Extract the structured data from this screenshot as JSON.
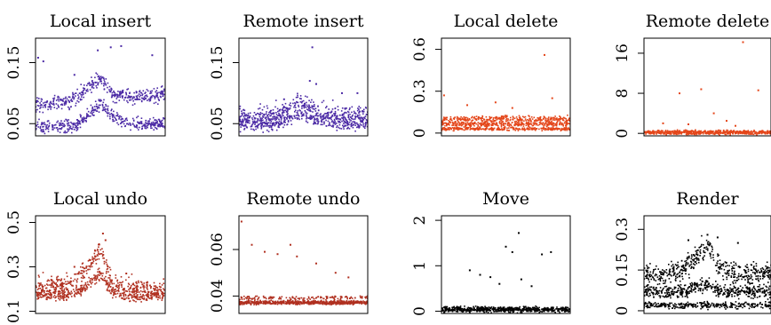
{
  "chart_data": [
    {
      "type": "scatter",
      "title": "Local insert",
      "xlabel": "",
      "ylabel": "",
      "ylim": [
        0.03,
        0.19
      ],
      "yticks": [
        0.05,
        0.15
      ],
      "ytick_labels": [
        "0.05",
        "0.15"
      ],
      "color": "#4b2aa5",
      "bands": [
        {
          "name": "",
          "y": [
            0.082,
            0.082,
            0.085,
            0.088,
            0.108,
            0.124,
            0.098,
            0.095,
            0.096,
            0.097,
            0.098
          ],
          "spread": 0.006,
          "n": 420
        },
        {
          "name": "",
          "y": [
            0.045,
            0.044,
            0.044,
            0.046,
            0.062,
            0.083,
            0.06,
            0.052,
            0.05,
            0.05,
            0.05
          ],
          "spread": 0.005,
          "n": 420
        }
      ],
      "outliers": [
        [
          0.02,
          0.158
        ],
        [
          0.06,
          0.152
        ],
        [
          0.58,
          0.175
        ],
        [
          0.66,
          0.177
        ],
        [
          0.48,
          0.17
        ],
        [
          0.9,
          0.162
        ],
        [
          0.3,
          0.13
        ]
      ]
    },
    {
      "type": "scatter",
      "title": "Remote insert",
      "xlabel": "",
      "ylabel": "",
      "ylim": [
        0.03,
        0.19
      ],
      "yticks": [
        0.05,
        0.15
      ],
      "ytick_labels": [
        "0.05",
        "0.15"
      ],
      "color": "#4b2aa5",
      "bands": [
        {
          "name": "",
          "y": [
            0.058,
            0.058,
            0.06,
            0.062,
            0.075,
            0.085,
            0.068,
            0.064,
            0.062,
            0.062,
            0.062
          ],
          "spread": 0.009,
          "n": 520
        },
        {
          "name": "",
          "y": [
            0.048,
            0.048,
            0.049,
            0.05,
            0.058,
            0.065,
            0.055,
            0.052,
            0.05,
            0.05,
            0.05
          ],
          "spread": 0.005,
          "n": 300
        }
      ],
      "outliers": [
        [
          0.57,
          0.175
        ],
        [
          0.55,
          0.12
        ],
        [
          0.6,
          0.115
        ],
        [
          0.8,
          0.1
        ],
        [
          0.35,
          0.09
        ],
        [
          0.92,
          0.1
        ]
      ]
    },
    {
      "type": "scatter",
      "title": "Local delete",
      "xlabel": "",
      "ylabel": "",
      "ylim": [
        -0.02,
        0.68
      ],
      "yticks": [
        0,
        0.3,
        0.6
      ],
      "ytick_labels": [
        "0",
        "0.3",
        "0.6"
      ],
      "color": "#e4461a",
      "bands": [
        {
          "name": "",
          "y": [
            0.1,
            0.1,
            0.1,
            0.1,
            0.1,
            0.1,
            0.1,
            0.1,
            0.1,
            0.1,
            0.1
          ],
          "spread": 0.012,
          "n": 320
        },
        {
          "name": "",
          "y": [
            0.065,
            0.065,
            0.065,
            0.065,
            0.065,
            0.065,
            0.065,
            0.065,
            0.065,
            0.065,
            0.065
          ],
          "spread": 0.008,
          "n": 320
        },
        {
          "name": "",
          "y": [
            0.03,
            0.03,
            0.03,
            0.03,
            0.03,
            0.03,
            0.03,
            0.03,
            0.03,
            0.03,
            0.03
          ],
          "spread": 0.006,
          "n": 320
        }
      ],
      "outliers": [
        [
          0.8,
          0.56
        ],
        [
          0.02,
          0.27
        ],
        [
          0.42,
          0.22
        ],
        [
          0.86,
          0.25
        ],
        [
          0.2,
          0.2
        ],
        [
          0.55,
          0.18
        ]
      ]
    },
    {
      "type": "scatter",
      "title": "Remote delete",
      "xlabel": "",
      "ylabel": "",
      "ylim": [
        -0.5,
        19
      ],
      "yticks": [
        0,
        8,
        16
      ],
      "ytick_labels": [
        "0",
        "8",
        "16"
      ],
      "color": "#e4461a",
      "bands": [
        {
          "name": "",
          "y": [
            0.2,
            0.2,
            0.2,
            0.2,
            0.2,
            0.2,
            0.2,
            0.2,
            0.2,
            0.2,
            0.2
          ],
          "spread": 0.2,
          "n": 600
        }
      ],
      "outliers": [
        [
          0.78,
          18.2
        ],
        [
          0.45,
          8.8
        ],
        [
          0.9,
          8.6
        ],
        [
          0.28,
          8.0
        ],
        [
          0.55,
          4.0
        ],
        [
          0.65,
          2.5
        ],
        [
          0.15,
          2.0
        ],
        [
          0.35,
          1.8
        ],
        [
          0.72,
          1.5
        ]
      ]
    },
    {
      "type": "scatter",
      "title": "Local undo",
      "xlabel": "",
      "ylabel": "",
      "ylim": [
        0.09,
        0.53
      ],
      "yticks": [
        0.1,
        0.3,
        0.5
      ],
      "ytick_labels": [
        "0.1",
        "0.3",
        "0.5"
      ],
      "color": "#b03020",
      "bands": [
        {
          "name": "",
          "y": [
            0.21,
            0.22,
            0.22,
            0.23,
            0.3,
            0.38,
            0.22,
            0.21,
            0.2,
            0.2,
            0.2
          ],
          "spread": 0.02,
          "n": 420
        },
        {
          "name": "",
          "y": [
            0.17,
            0.17,
            0.17,
            0.18,
            0.22,
            0.27,
            0.18,
            0.17,
            0.16,
            0.17,
            0.17
          ],
          "spread": 0.012,
          "n": 420
        }
      ],
      "outliers": [
        [
          0.52,
          0.45
        ],
        [
          0.54,
          0.42
        ],
        [
          0.3,
          0.3
        ],
        [
          0.7,
          0.27
        ]
      ]
    },
    {
      "type": "scatter",
      "title": "Remote undo",
      "xlabel": "",
      "ylabel": "",
      "ylim": [
        0.0325,
        0.0745
      ],
      "yticks": [
        0.04,
        0.06
      ],
      "ytick_labels": [
        "0.04",
        "0.06"
      ],
      "color": "#b03020",
      "bands": [
        {
          "name": "",
          "y": [
            0.0372,
            0.0372,
            0.0372,
            0.0372,
            0.0372,
            0.0372,
            0.0372,
            0.0372,
            0.0372,
            0.0372,
            0.0372
          ],
          "spread": 0.0004,
          "n": 700
        },
        {
          "name": "",
          "y": [
            0.0392,
            0.0392,
            0.0392,
            0.0392,
            0.0392,
            0.0392,
            0.0392,
            0.0392,
            0.0392,
            0.0392,
            0.0392
          ],
          "spread": 0.0004,
          "n": 140
        }
      ],
      "outliers": [
        [
          0.02,
          0.072
        ],
        [
          0.1,
          0.062
        ],
        [
          0.4,
          0.062
        ],
        [
          0.2,
          0.059
        ],
        [
          0.3,
          0.058
        ],
        [
          0.45,
          0.057
        ],
        [
          0.6,
          0.054
        ],
        [
          0.75,
          0.05
        ],
        [
          0.85,
          0.048
        ]
      ]
    },
    {
      "type": "scatter",
      "title": "Move",
      "xlabel": "",
      "ylabel": "",
      "ylim": [
        -0.05,
        2.1
      ],
      "yticks": [
        0,
        1,
        2
      ],
      "ytick_labels": [
        "0",
        "1",
        "2"
      ],
      "color": "#000000",
      "bands": [
        {
          "name": "",
          "y": [
            0.04,
            0.04,
            0.04,
            0.04,
            0.04,
            0.04,
            0.04,
            0.04,
            0.04,
            0.04,
            0.04
          ],
          "spread": 0.03,
          "n": 600
        }
      ],
      "outliers": [
        [
          0.6,
          1.72
        ],
        [
          0.5,
          1.42
        ],
        [
          0.55,
          1.3
        ],
        [
          0.85,
          1.3
        ],
        [
          0.78,
          1.25
        ],
        [
          0.22,
          0.9
        ],
        [
          0.3,
          0.8
        ],
        [
          0.38,
          0.75
        ],
        [
          0.45,
          0.6
        ],
        [
          0.62,
          0.7
        ],
        [
          0.7,
          0.55
        ]
      ]
    },
    {
      "type": "scatter",
      "title": "Render",
      "xlabel": "",
      "ylabel": "",
      "ylim": [
        -0.01,
        0.35
      ],
      "yticks": [
        0,
        0.15,
        0.3
      ],
      "ytick_labels": [
        "0",
        "0.15",
        "0.3"
      ],
      "color": "#000000",
      "bands": [
        {
          "name": "",
          "y": [
            0.13,
            0.13,
            0.14,
            0.15,
            0.2,
            0.24,
            0.16,
            0.14,
            0.13,
            0.14,
            0.14
          ],
          "spread": 0.02,
          "n": 480
        },
        {
          "name": "",
          "y": [
            0.07,
            0.07,
            0.07,
            0.07,
            0.09,
            0.1,
            0.07,
            0.07,
            0.07,
            0.07,
            0.07
          ],
          "spread": 0.012,
          "n": 480
        },
        {
          "name": "",
          "y": [
            0.02,
            0.02,
            0.02,
            0.02,
            0.02,
            0.02,
            0.02,
            0.02,
            0.02,
            0.02,
            0.02
          ],
          "spread": 0.006,
          "n": 300
        }
      ],
      "outliers": [
        [
          0.5,
          0.28
        ],
        [
          0.58,
          0.27
        ],
        [
          0.35,
          0.26
        ],
        [
          0.74,
          0.25
        ]
      ]
    }
  ]
}
